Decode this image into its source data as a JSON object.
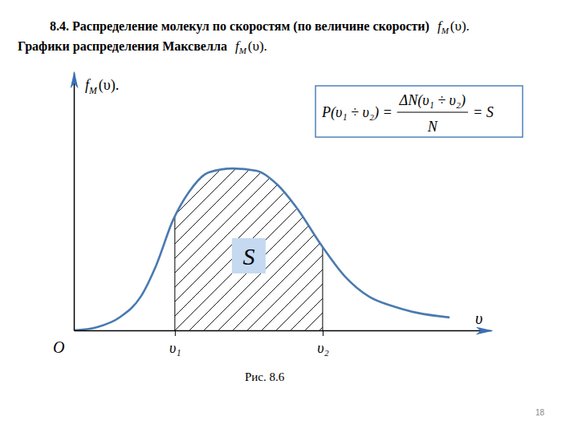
{
  "chart_data": {
    "type": "area",
    "title": "8.4. Распределение молекул по скоростям (по величине скорости)",
    "title_formula": {
      "base": "f",
      "sub": "M",
      "arg": "(υ)."
    },
    "subtitle": "Графики распределения Максвелла",
    "subtitle_formula": {
      "base": "f",
      "sub": "M",
      "arg": "(υ)."
    },
    "y_label": {
      "base": "f",
      "sub": "M",
      "arg": "(υ)."
    },
    "x_label": "υ",
    "origin_label": "O",
    "x": [
      0,
      0.54,
      1.12,
      1.6,
      1.98,
      2.37,
      2.75,
      3.23,
      3.81,
      4.38,
      4.87,
      5.35,
      5.92,
      6.5,
      7.08,
      7.65,
      8.23,
      9.0
    ],
    "series": [
      {
        "color": "#4a7ab0",
        "values": [
          0,
          0.12,
          0.53,
          1.3,
          2.55,
          4.25,
          5.34,
          6.12,
          6.27,
          6.18,
          5.65,
          4.72,
          3.32,
          2.08,
          1.3,
          0.93,
          0.68,
          0.5
        ]
      }
    ],
    "xlim": [
      0,
      10
    ],
    "ylim": [
      0,
      10
    ],
    "xticks": [
      {
        "value": 2.42,
        "label": "υ₁"
      },
      {
        "value": 5.96,
        "label": "υ₂"
      }
    ],
    "yticks": [],
    "tick_labels": "x",
    "shaded_area": {
      "label": "S"
    },
    "formula": {
      "lhs": "P(υ₁ ÷ υ₂) =",
      "numerator": "ΔN(υ₁ ÷ υ₂)",
      "denominator": "N",
      "rhs": "= S"
    },
    "caption": "Рис. 8.6",
    "page_number": 18
  }
}
